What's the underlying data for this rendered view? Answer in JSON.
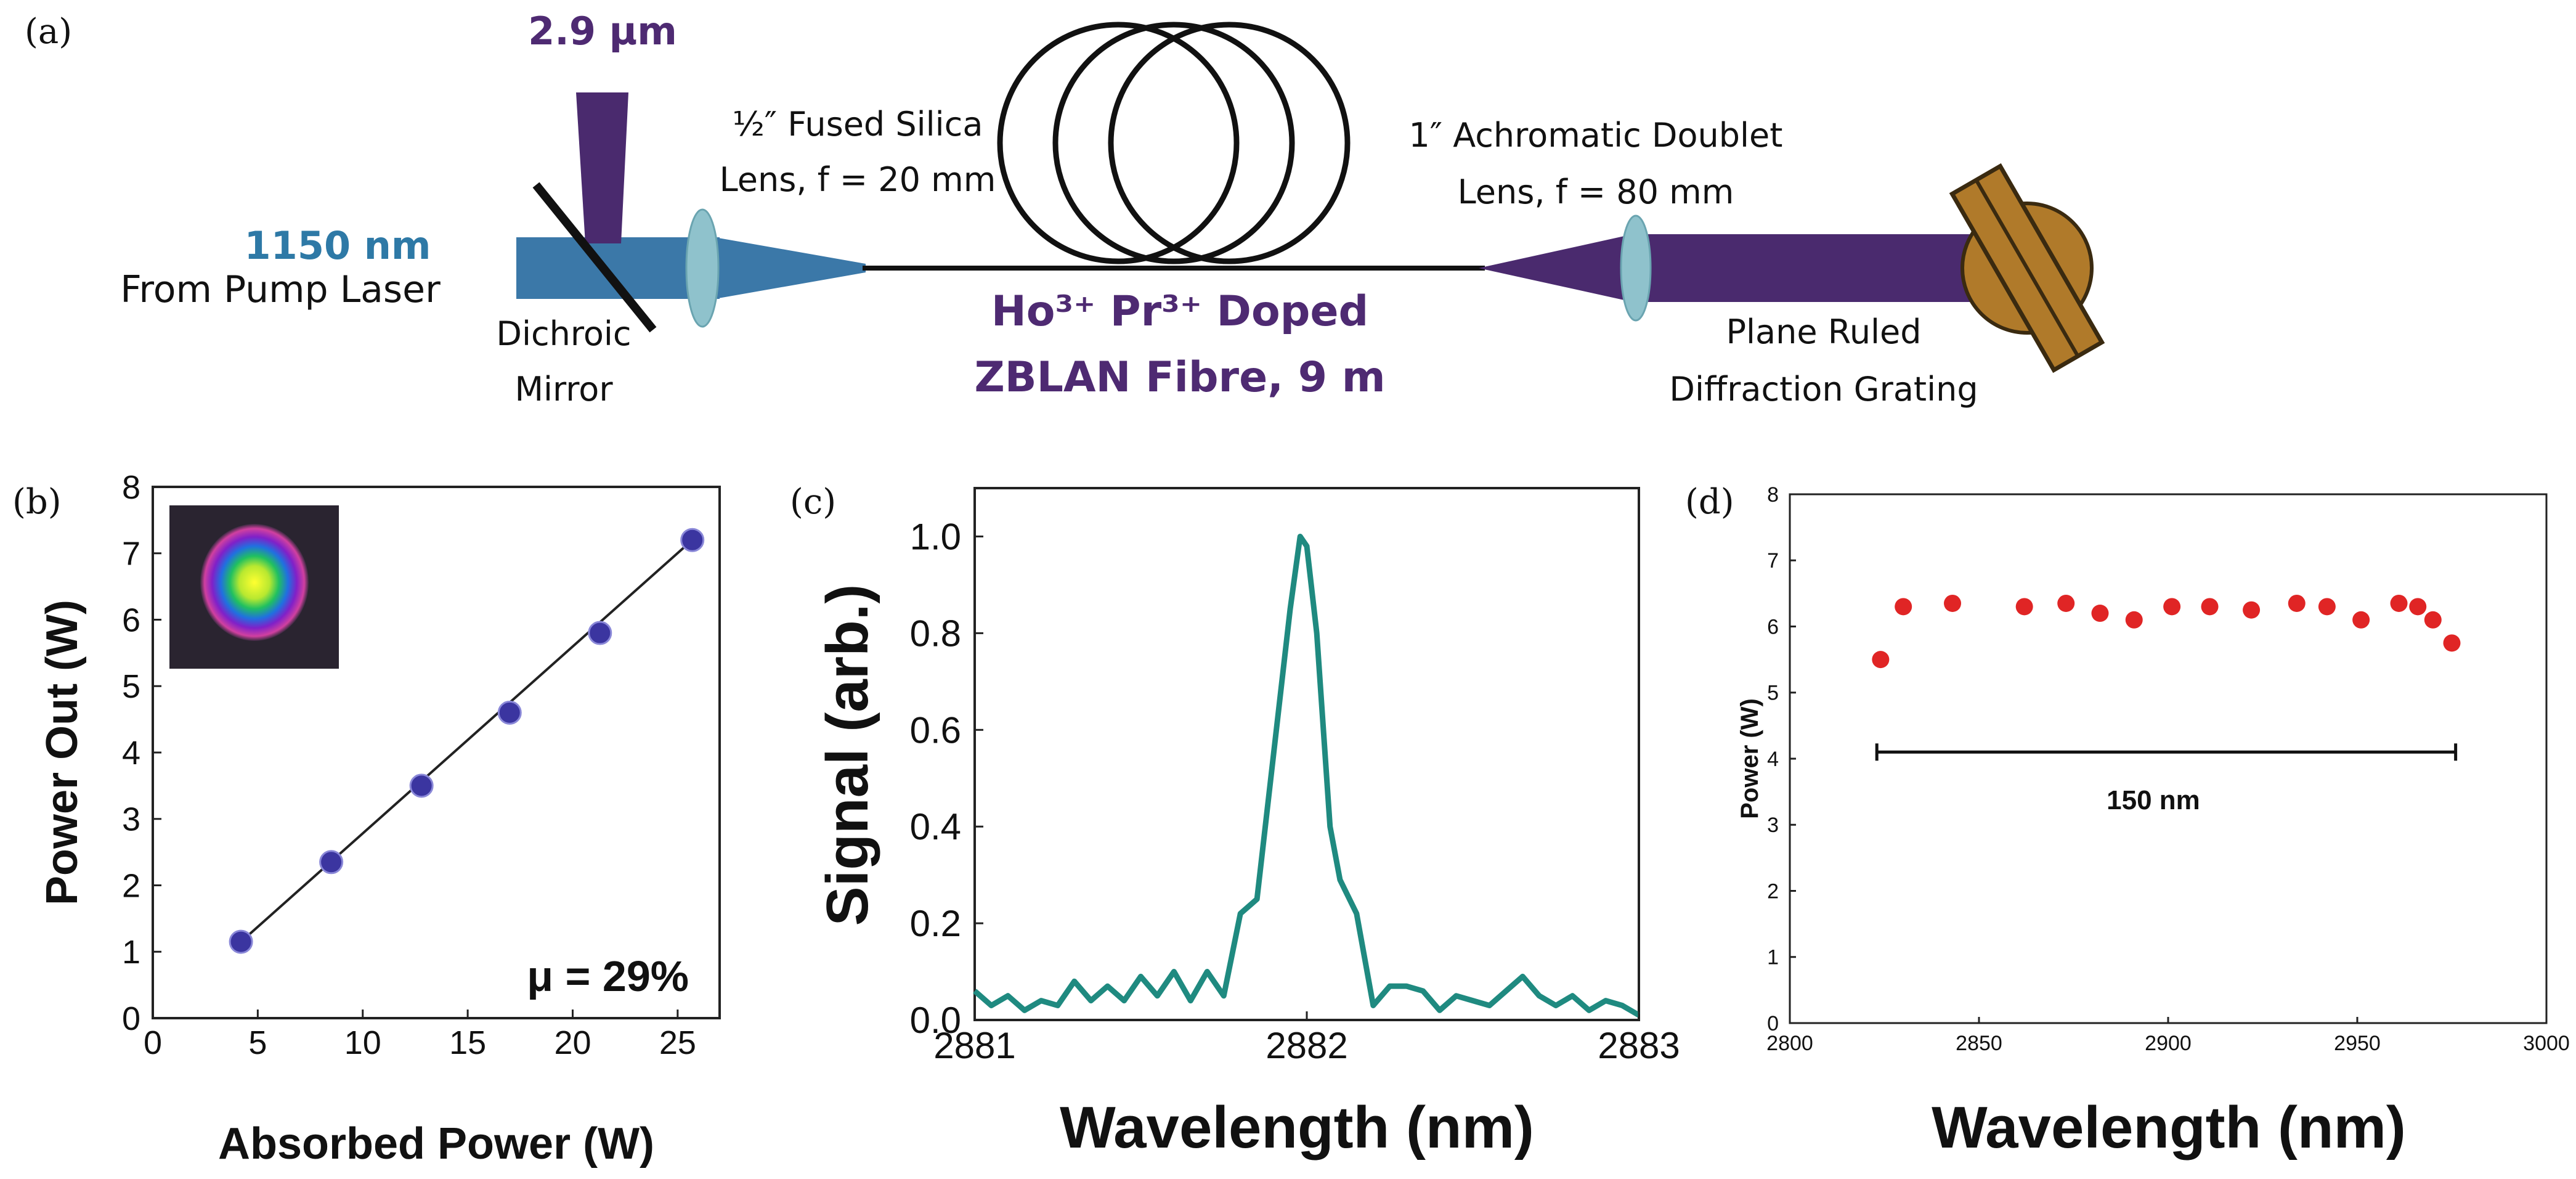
{
  "colors": {
    "purple": "#4a2a6e",
    "purple_text": "#4e2a72",
    "blue_beam": "#3b78a8",
    "blue_text": "#2e79a6",
    "lens": "#8fc2cc",
    "grating": "#b07a2a",
    "teal": "#1f8a80",
    "blue_dot": "#3b35a0",
    "red_dot": "#e02525"
  },
  "panel_labels": {
    "a": "(a)",
    "b": "(b)",
    "c": "(c)",
    "d": "(d)"
  },
  "setup": {
    "pump_wavelength": "1150 nm",
    "pump_source": "From Pump Laser",
    "output_wavelength": "2.9 µm",
    "mirror_line1": "Dichroic",
    "mirror_line2": "Mirror",
    "lens1_line1": "½″ Fused Silica",
    "lens1_line2": "Lens, f = 20 mm",
    "fibre_line1": "Ho³⁺ Pr³⁺ Doped",
    "fibre_line2": "ZBLAN Fibre, 9 m",
    "lens2_line1": "1″ Achromatic Doublet",
    "lens2_line2": "Lens, f = 80 mm",
    "grating_line1": "Plane Ruled",
    "grating_line2": "Diffraction Grating"
  },
  "chart_data": [
    {
      "panel": "b",
      "type": "scatter",
      "xlabel": "Absorbed Power (W)",
      "ylabel": "Power Out (W)",
      "xlim": [
        0,
        27
      ],
      "ylim": [
        0,
        8
      ],
      "xticks": [
        0,
        5,
        10,
        15,
        20,
        25
      ],
      "yticks": [
        0,
        1,
        2,
        3,
        4,
        5,
        6,
        7,
        8
      ],
      "x": [
        4.2,
        8.5,
        12.8,
        17.0,
        21.3,
        25.7
      ],
      "y": [
        1.15,
        2.35,
        3.5,
        4.6,
        5.8,
        7.2
      ],
      "fit_line": {
        "x": [
          4.2,
          25.7
        ],
        "y": [
          1.15,
          7.2
        ]
      },
      "annotation": "μ = 29%",
      "inset": "beam profile image"
    },
    {
      "panel": "c",
      "type": "line",
      "xlabel": "Wavelength (nm)",
      "ylabel": "Signal (arb.)",
      "xlim": [
        2881,
        2883
      ],
      "ylim": [
        0,
        1.1
      ],
      "xticks": [
        2881,
        2882,
        2883
      ],
      "yticks": [
        0.0,
        0.2,
        0.4,
        0.6,
        0.8,
        1.0
      ],
      "ytick_labels": [
        "0.0",
        "0.2",
        "0.4",
        "0.6",
        "0.8",
        "1.0"
      ],
      "x": [
        2881.0,
        2881.05,
        2881.1,
        2881.15,
        2881.2,
        2881.25,
        2881.3,
        2881.35,
        2881.4,
        2881.45,
        2881.5,
        2881.55,
        2881.6,
        2881.65,
        2881.7,
        2881.75,
        2881.8,
        2881.85,
        2881.9,
        2881.95,
        2881.98,
        2882.0,
        2882.03,
        2882.07,
        2882.1,
        2882.15,
        2882.2,
        2882.25,
        2882.3,
        2882.35,
        2882.4,
        2882.45,
        2882.5,
        2882.55,
        2882.6,
        2882.65,
        2882.7,
        2882.75,
        2882.8,
        2882.85,
        2882.9,
        2882.95,
        2883.0
      ],
      "y": [
        0.06,
        0.03,
        0.05,
        0.02,
        0.04,
        0.03,
        0.08,
        0.04,
        0.07,
        0.04,
        0.09,
        0.05,
        0.1,
        0.04,
        0.1,
        0.05,
        0.22,
        0.25,
        0.55,
        0.85,
        1.0,
        0.98,
        0.8,
        0.4,
        0.29,
        0.22,
        0.03,
        0.07,
        0.07,
        0.06,
        0.02,
        0.05,
        0.04,
        0.03,
        0.06,
        0.09,
        0.05,
        0.03,
        0.05,
        0.02,
        0.04,
        0.03,
        0.01
      ]
    },
    {
      "panel": "d",
      "type": "scatter",
      "xlabel": "Wavelength (nm)",
      "ylabel": "Power (W)",
      "xlim": [
        2800,
        3000
      ],
      "ylim": [
        0,
        8
      ],
      "xticks": [
        2800,
        2850,
        2900,
        2950,
        3000
      ],
      "yticks": [
        0,
        1,
        2,
        3,
        4,
        5,
        6,
        7,
        8
      ],
      "x": [
        2824,
        2830,
        2843,
        2862,
        2873,
        2882,
        2891,
        2901,
        2911,
        2922,
        2934,
        2942,
        2951,
        2961,
        2966,
        2970,
        2975
      ],
      "y": [
        5.5,
        6.3,
        6.35,
        6.3,
        6.35,
        6.2,
        6.1,
        6.3,
        6.3,
        6.25,
        6.35,
        6.3,
        6.1,
        6.35,
        6.3,
        6.1,
        5.75
      ],
      "range_bar": {
        "x": [
          2823,
          2976
        ],
        "y": 4.1
      },
      "annotation": "150 nm"
    }
  ]
}
